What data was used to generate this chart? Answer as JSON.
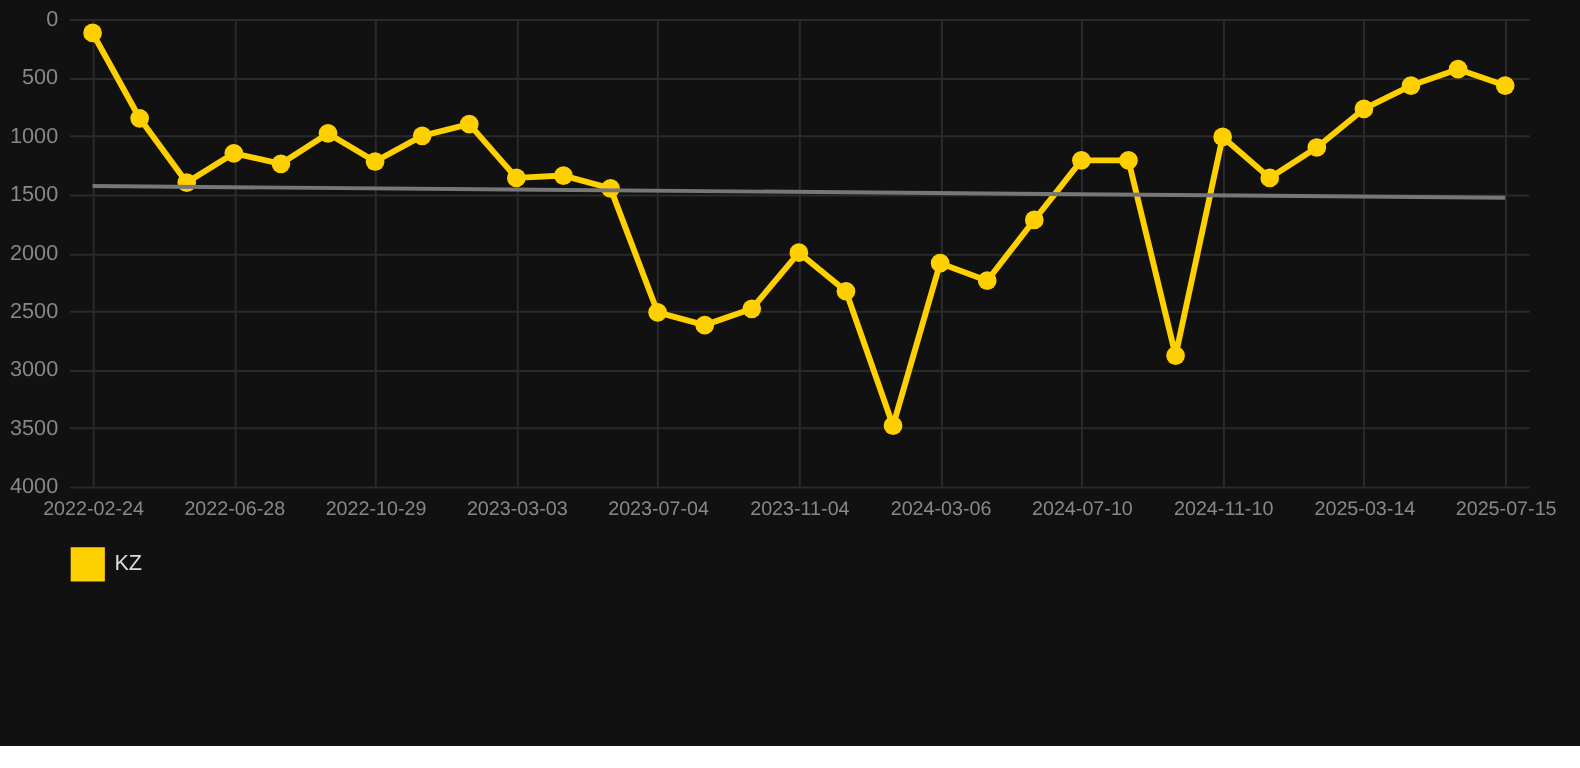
{
  "chart_data": {
    "type": "line",
    "categories": [
      "2022-02-24",
      null,
      null,
      "2022-06-28",
      null,
      null,
      "2022-10-29",
      null,
      null,
      "2023-03-03",
      null,
      null,
      "2023-07-04",
      null,
      null,
      "2023-11-04",
      null,
      null,
      "2024-03-06",
      null,
      null,
      "2024-07-10",
      null,
      null,
      "2024-11-10",
      null,
      null,
      "2025-03-14",
      null,
      null,
      "2025-07-15"
    ],
    "series": [
      {
        "name": "KZ",
        "color": "#ffd000",
        "marker": "circle",
        "values": [
          120,
          850,
          1400,
          1150,
          1240,
          980,
          1220,
          1000,
          900,
          1360,
          1340,
          1450,
          2510,
          2620,
          2480,
          2000,
          2330,
          3480,
          2090,
          2240,
          1720,
          1210,
          1210,
          2880,
          1010,
          1360,
          1100,
          770,
          570,
          430,
          570
        ]
      },
      {
        "type": "line",
        "color": "#777777",
        "marker": "none",
        "values": [
          1430,
          null,
          null,
          null,
          null,
          null,
          null,
          null,
          null,
          null,
          null,
          null,
          null,
          null,
          null,
          null,
          null,
          null,
          null,
          null,
          null,
          null,
          null,
          null,
          null,
          null,
          null,
          null,
          null,
          null,
          1530
        ]
      }
    ],
    "ylim": [
      4000,
      0
    ],
    "yticks": [
      0,
      500,
      1000,
      1500,
      2000,
      2500,
      3000,
      3500,
      4000
    ],
    "grid": true,
    "legend": "bottom"
  }
}
